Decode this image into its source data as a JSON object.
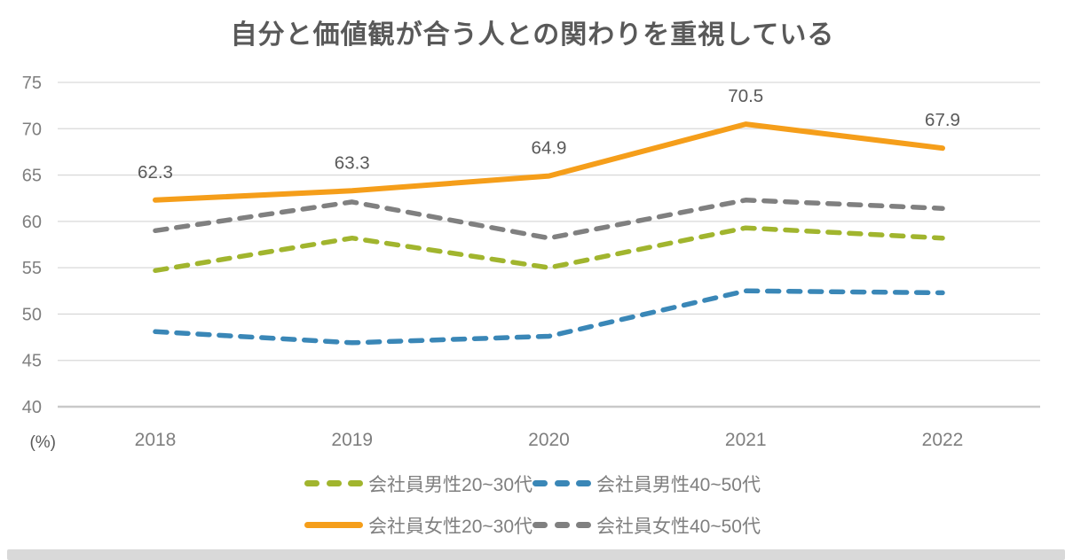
{
  "chart_data": {
    "type": "line",
    "title": "自分と価値観が合う人との関わりを重視している",
    "unit_label": "(%)",
    "categories": [
      "2018",
      "2019",
      "2020",
      "2021",
      "2022"
    ],
    "ylim": [
      40,
      75
    ],
    "ytick_step": 5,
    "yticks": [
      40,
      45,
      50,
      55,
      60,
      65,
      70,
      75
    ],
    "grid": "horizontal",
    "legend_position": "bottom",
    "series": [
      {
        "name": "会社員男性20~30代",
        "color": "#a1b52e",
        "line_style": "dashed",
        "values": [
          54.7,
          58.2,
          55.0,
          59.3,
          58.2
        ]
      },
      {
        "name": "会社員男性40~50代",
        "color": "#3a87b7",
        "line_style": "dashed",
        "values": [
          48.1,
          46.9,
          47.6,
          52.5,
          52.3
        ]
      },
      {
        "name": "会社員女性20~30代",
        "color": "#f59e1a",
        "line_style": "solid",
        "values": [
          62.3,
          63.3,
          64.9,
          70.5,
          67.9
        ],
        "data_labels": [
          "62.3",
          "63.3",
          "64.9",
          "70.5",
          "67.9"
        ]
      },
      {
        "name": "会社員女性40~50代",
        "color": "#808080",
        "line_style": "dashed",
        "values": [
          59.0,
          62.1,
          58.2,
          62.3,
          61.4
        ]
      }
    ],
    "legend_rows": [
      [
        0,
        1
      ],
      [
        2,
        3
      ]
    ]
  },
  "colors": {
    "background": "#ffffff",
    "title_text": "#595959",
    "axis_text": "#7f7f7f",
    "unit_text": "#595959",
    "data_label_text": "#595959",
    "gridline": "#d9d9d9",
    "axis_line": "#c9c9c9",
    "legend_text": "#7f7f7f",
    "bottom_bar": "#d9d9d9"
  }
}
